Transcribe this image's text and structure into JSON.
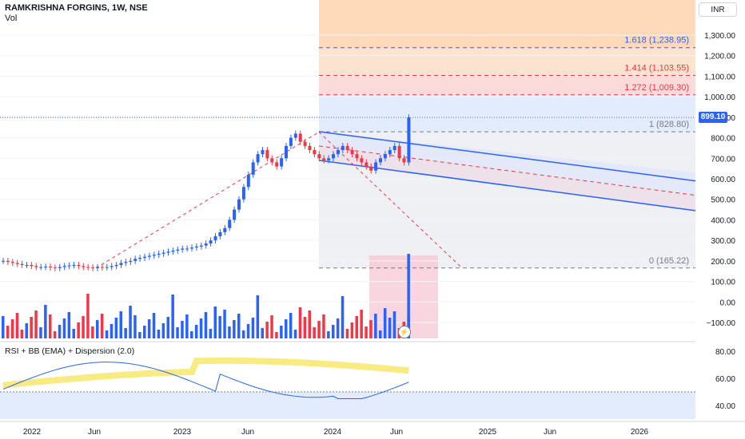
{
  "header": {
    "symbol_title": "RAMKRISHNA FORGINS, 1W, NSE",
    "volume_label": "Vol",
    "currency_button": "INR"
  },
  "last_price": {
    "label": "899.10",
    "value": 899.1,
    "color": "#2962ff"
  },
  "fib_levels": [
    {
      "label": "1.618 (1,238.95)",
      "value": 1238.95,
      "color": "#2962ff"
    },
    {
      "label": "1.414 (1,103.55)",
      "value": 1103.55,
      "color": "#f23645"
    },
    {
      "label": "1.272 (1,009.30)",
      "value": 1009.3,
      "color": "#f23645"
    },
    {
      "label": "1 (828.80)",
      "value": 828.8,
      "color": "#787b86"
    },
    {
      "label": "0 (165.22)",
      "value": 165.22,
      "color": "#787b86"
    }
  ],
  "price_axis_ticks": [
    "1,300.00",
    "1,200.00",
    "1,100.00",
    "1,000.00",
    "900.00",
    "800.00",
    "700.00",
    "600.00",
    "500.00",
    "400.00",
    "300.00",
    "200.00",
    "100.00",
    "0.00",
    "−100.00"
  ],
  "rsi_pane": {
    "label": "RSI + BB (EMA) + Dispersion (2.0)",
    "ticks": [
      "80.00",
      "60.00",
      "40.00"
    ]
  },
  "time_axis_ticks": [
    "2022",
    "Jun",
    "2023",
    "Jun",
    "2024",
    "Jun",
    "2025",
    "Jun",
    "2026"
  ],
  "alert_icon": "lightning-alert-icon",
  "colors": {
    "up": "#2962ff",
    "down": "#f23645",
    "fib_orange": "#ffd6b3",
    "fib_blue_zone": "#e3ecfd",
    "channel": "#2962ff"
  },
  "chart_data": {
    "type": "line",
    "price_weekly_close": [
      200,
      195,
      190,
      185,
      180,
      180,
      175,
      170,
      170,
      172,
      168,
      165,
      170,
      175,
      178,
      180,
      175,
      170,
      168,
      165,
      170,
      168,
      170,
      175,
      180,
      190,
      195,
      200,
      210,
      215,
      220,
      225,
      230,
      235,
      240,
      245,
      250,
      255,
      260,
      260,
      265,
      270,
      275,
      285,
      300,
      320,
      340,
      360,
      400,
      450,
      500,
      560,
      620,
      680,
      720,
      740,
      700,
      680,
      660,
      700,
      760,
      800,
      820,
      780,
      760,
      740,
      720,
      700,
      690,
      700,
      720,
      740,
      760,
      740,
      720,
      700,
      680,
      660,
      640,
      680,
      700,
      720,
      740,
      760,
      700,
      680,
      899.1
    ],
    "ylim": [
      -150,
      1380
    ],
    "rsi_ylim": [
      30,
      90
    ]
  }
}
